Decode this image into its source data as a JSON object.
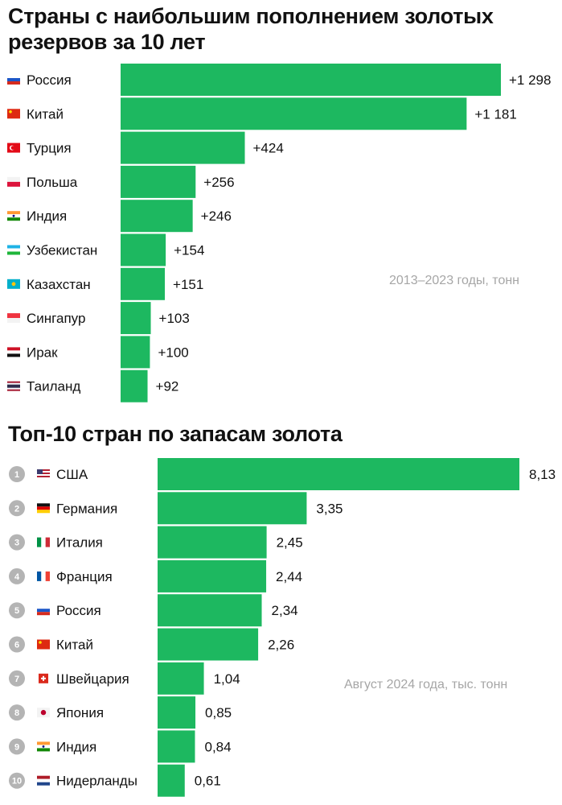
{
  "colors": {
    "bar": "#1db860",
    "rank_circle": "#b4b4b4",
    "note": "#a6a6a6"
  },
  "chart1": {
    "title": "Страны с наибольшим пополнением золотых резервов за 10 лет",
    "note": "2013–2023 годы, тонн"
  },
  "chart2": {
    "title": "Топ-10 стран по запасам золота",
    "note": "Август 2024 года, тыс. тонн"
  },
  "chart_data": [
    {
      "type": "bar",
      "orientation": "horizontal",
      "title": "Страны с наибольшим пополнением золотых резервов за 10 лет",
      "subtitle": "2013–2023 годы, тонн",
      "categories": [
        "Россия",
        "Китай",
        "Турция",
        "Польша",
        "Индия",
        "Узбекистан",
        "Казахстан",
        "Сингапур",
        "Ирак",
        "Таиланд"
      ],
      "flags": [
        "ru",
        "cn",
        "tr",
        "pl",
        "in",
        "uz",
        "kz",
        "sg",
        "iq",
        "th"
      ],
      "values": [
        1298,
        1181,
        424,
        256,
        246,
        154,
        151,
        103,
        100,
        92
      ],
      "value_labels": [
        "+1 298",
        "+1 181",
        "+424",
        "+256",
        "+246",
        "+154",
        "+151",
        "+103",
        "+100",
        "+92"
      ],
      "grid": false
    },
    {
      "type": "bar",
      "orientation": "horizontal",
      "title": "Топ-10 стран по запасам золота",
      "subtitle": "Август 2024 года, тыс. тонн",
      "ranks": [
        "1",
        "2",
        "3",
        "4",
        "5",
        "6",
        "7",
        "8",
        "9",
        "10"
      ],
      "categories": [
        "США",
        "Германия",
        "Италия",
        "Франция",
        "Россия",
        "Китай",
        "Швейцария",
        "Япония",
        "Индия",
        "Нидерланды"
      ],
      "flags": [
        "us",
        "de",
        "it",
        "fr",
        "ru",
        "cn",
        "ch",
        "jp",
        "in",
        "nl"
      ],
      "values": [
        8.13,
        3.35,
        2.45,
        2.44,
        2.34,
        2.26,
        1.04,
        0.85,
        0.84,
        0.61
      ],
      "value_labels": [
        "8,13",
        "3,35",
        "2,45",
        "2,44",
        "2,34",
        "2,26",
        "1,04",
        "0,85",
        "0,84",
        "0,61"
      ],
      "grid": false
    }
  ]
}
